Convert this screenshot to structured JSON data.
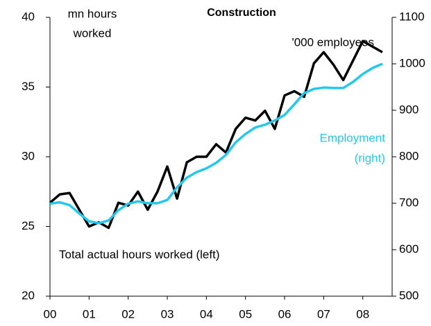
{
  "chart_data": {
    "type": "line",
    "title": "Construction",
    "y_label": [
      "mn hours",
      "worked"
    ],
    "y2_label": "'000 employees",
    "x": [
      2000,
      2000.25,
      2000.5,
      2000.75,
      2001,
      2001.25,
      2001.5,
      2001.75,
      2002,
      2002.25,
      2002.5,
      2002.75,
      2003,
      2003.25,
      2003.5,
      2003.75,
      2004,
      2004.25,
      2004.5,
      2004.75,
      2005,
      2005.25,
      2005.5,
      2005.75,
      2006,
      2006.25,
      2006.5,
      2006.75,
      2007,
      2007.25,
      2007.5,
      2007.75,
      2008,
      2008.25,
      2008.5
    ],
    "series": [
      {
        "name": [
          "Total actual hours worked (left)"
        ],
        "color": "#000000",
        "axis": "y",
        "values": [
          26.7,
          27.3,
          27.4,
          26.2,
          25.0,
          25.3,
          24.9,
          26.7,
          26.5,
          27.5,
          26.2,
          27.5,
          29.3,
          27.0,
          29.6,
          30.0,
          30.0,
          30.9,
          30.3,
          32.0,
          32.8,
          32.6,
          33.3,
          32.0,
          34.4,
          34.7,
          34.3,
          36.7,
          37.5,
          36.6,
          35.5,
          36.9,
          38.3,
          37.9,
          37.5
        ]
      },
      {
        "name": [
          "Employment",
          "(right)"
        ],
        "color": "#22c8ee",
        "axis": "y2",
        "values": [
          699,
          702,
          696,
          678,
          661,
          657,
          663,
          685,
          699,
          704,
          700,
          700,
          707,
          734,
          755,
          767,
          775,
          787,
          804,
          831,
          849,
          863,
          869,
          878,
          890,
          913,
          937,
          946,
          949,
          948,
          948,
          961,
          978,
          991,
          1000
        ]
      }
    ],
    "xlim": [
      2000,
      2008.75
    ],
    "xticks": [
      {
        "value": 2000,
        "label": "00"
      },
      {
        "value": 2001,
        "label": "01"
      },
      {
        "value": 2002,
        "label": "02"
      },
      {
        "value": 2003,
        "label": "03"
      },
      {
        "value": 2004,
        "label": "04"
      },
      {
        "value": 2005,
        "label": "05"
      },
      {
        "value": 2006,
        "label": "06"
      },
      {
        "value": 2007,
        "label": "07"
      },
      {
        "value": 2008,
        "label": "08"
      }
    ],
    "ylim": [
      20,
      40
    ],
    "yticks": [
      20,
      25,
      30,
      35,
      40
    ],
    "y2lim": [
      500,
      1100
    ],
    "y2ticks": [
      500,
      600,
      700,
      800,
      900,
      1000,
      1100
    ]
  }
}
